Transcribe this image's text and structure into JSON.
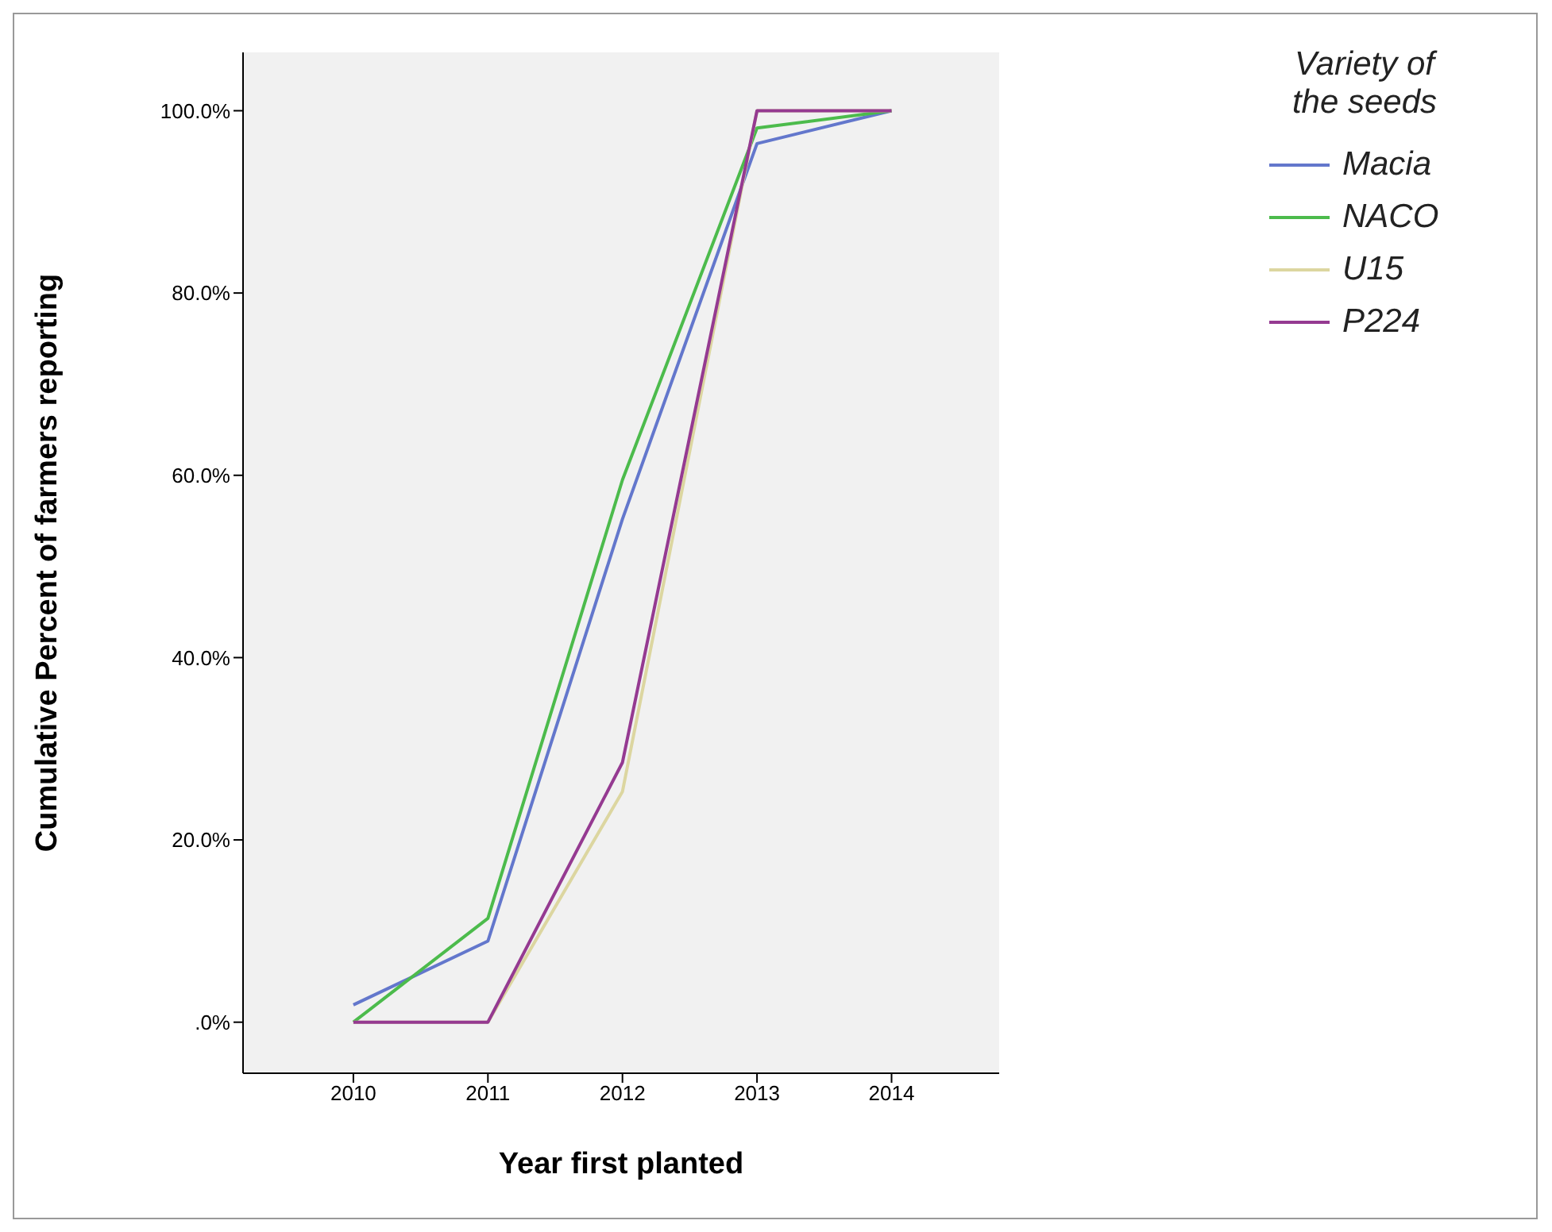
{
  "chart_data": {
    "type": "line",
    "xlabel": "Year first planted",
    "ylabel": "Cumulative Percent of farmers reporting",
    "legend_title": "Variety of the seeds",
    "x": [
      2010,
      2011,
      2012,
      2013,
      2014
    ],
    "series": [
      {
        "name": "Macia",
        "color": "#6377cc",
        "values": [
          1.9,
          8.9,
          55.2,
          96.4,
          100
        ]
      },
      {
        "name": "NACO",
        "color": "#4cbb4c",
        "values": [
          0,
          11.4,
          59.5,
          98.1,
          100
        ]
      },
      {
        "name": "U15",
        "color": "#dcd6a0",
        "values": [
          0,
          0,
          25.3,
          100,
          100
        ]
      },
      {
        "name": "P224",
        "color": "#953a91",
        "values": [
          0,
          0,
          28.5,
          100,
          100
        ]
      }
    ],
    "xlim": [
      2009.18,
      2014.8
    ],
    "xticks": [
      2010,
      2011,
      2012,
      2013,
      2014
    ],
    "ylim": [
      -5.6,
      106.4
    ],
    "yticks": [
      {
        "value": 0,
        "label": ".0%"
      },
      {
        "value": 20,
        "label": "20.0%"
      },
      {
        "value": 40,
        "label": "40.0%"
      },
      {
        "value": 60,
        "label": "60.0%"
      },
      {
        "value": 80,
        "label": "80.0%"
      },
      {
        "value": 100,
        "label": "100.0%"
      }
    ],
    "grid": false,
    "legend": "right",
    "marker": "none",
    "line_style": "solid"
  }
}
